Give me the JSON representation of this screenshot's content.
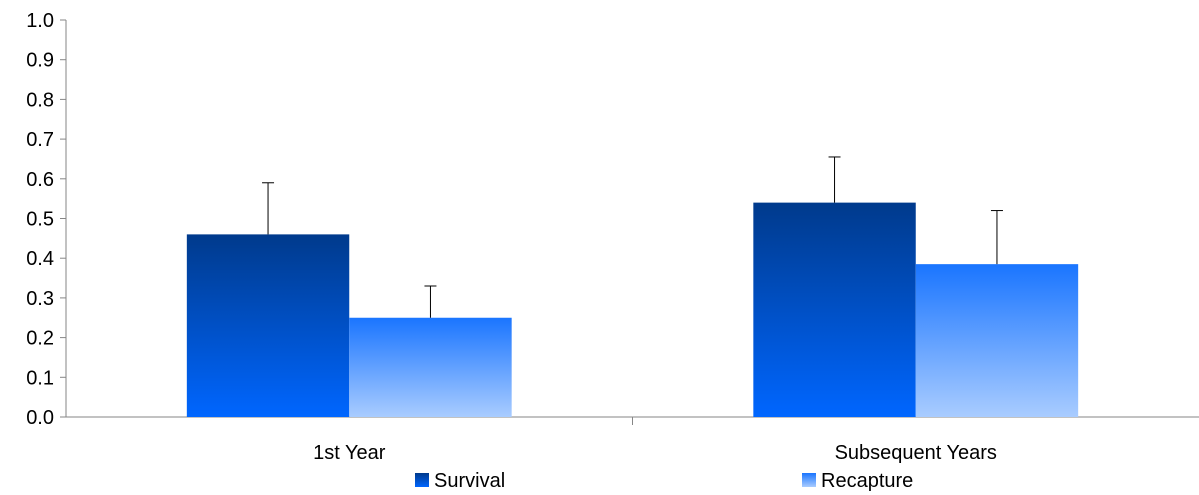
{
  "chart_data": {
    "type": "bar",
    "categories": [
      "1st Year",
      "Subsequent Years"
    ],
    "series": [
      {
        "name": "Survival",
        "values": [
          0.46,
          0.54
        ],
        "error_plus": [
          0.13,
          0.115
        ]
      },
      {
        "name": "Recapture",
        "values": [
          0.25,
          0.385
        ],
        "error_plus": [
          0.08,
          0.135
        ]
      }
    ],
    "ylim": [
      0.0,
      1.0
    ],
    "yticks": [
      "0.0",
      "0.1",
      "0.2",
      "0.3",
      "0.4",
      "0.5",
      "0.6",
      "0.7",
      "0.8",
      "0.9",
      "1.0"
    ],
    "grid": false,
    "legend_position": "bottom",
    "colors": {
      "Survival": {
        "top": "#003a8c",
        "bottom": "#0066ff"
      },
      "Recapture": {
        "top": "#1a75ff",
        "bottom": "#a9ccff"
      },
      "axis": "#868686",
      "error_bar": "#000000"
    }
  }
}
